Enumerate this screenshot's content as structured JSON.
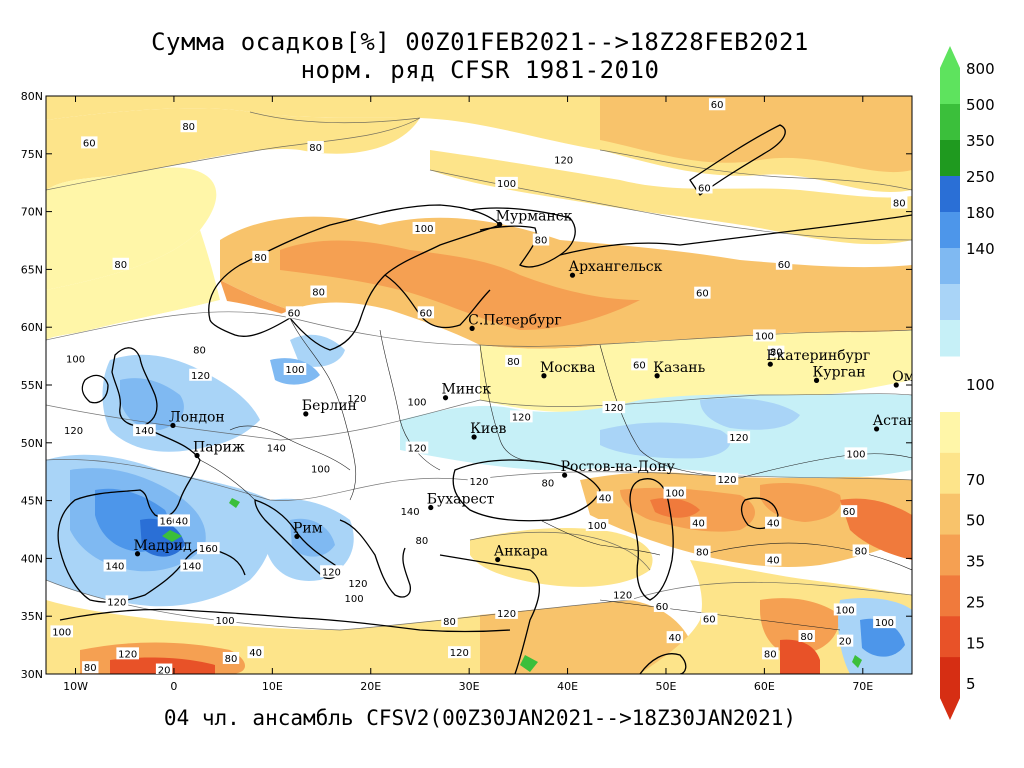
{
  "title": {
    "line1": "Сумма осадков[%] 00Z01FEB2021-->18Z28FEB2021",
    "line2": "норм. ряд CFSR 1981-2010"
  },
  "footer": "04 чл. ансамбль CFSV2(00Z30JAN2021-->18Z30JAN2021)",
  "lat_labels": [
    "80N",
    "75N",
    "70N",
    "65N",
    "60N",
    "55N",
    "50N",
    "45N",
    "40N",
    "35N",
    "30N"
  ],
  "lon_labels": [
    "10W",
    "0",
    "10E",
    "20E",
    "30E",
    "40E",
    "50E",
    "60E",
    "70E"
  ],
  "cities": [
    {
      "name": "Мурманск",
      "lon": 33.1,
      "lat": 68.9
    },
    {
      "name": "Архангельск",
      "lon": 40.5,
      "lat": 64.5
    },
    {
      "name": "С.Петербург",
      "lon": 30.3,
      "lat": 59.9
    },
    {
      "name": "Москва",
      "lon": 37.6,
      "lat": 55.8
    },
    {
      "name": "Казань",
      "lon": 49.1,
      "lat": 55.8
    },
    {
      "name": "Екатеринбург",
      "lon": 60.6,
      "lat": 56.8
    },
    {
      "name": "Курган",
      "lon": 65.3,
      "lat": 55.4
    },
    {
      "name": "Омск",
      "lon": 73.4,
      "lat": 55.0
    },
    {
      "name": "Астана",
      "lon": 71.4,
      "lat": 51.2
    },
    {
      "name": "Минск",
      "lon": 27.6,
      "lat": 53.9
    },
    {
      "name": "Берлин",
      "lon": 13.4,
      "lat": 52.5
    },
    {
      "name": "Лондон",
      "lon": -0.1,
      "lat": 51.5
    },
    {
      "name": "Париж",
      "lon": 2.35,
      "lat": 48.9
    },
    {
      "name": "Киев",
      "lon": 30.5,
      "lat": 50.5
    },
    {
      "name": "Ростов-на-Дону",
      "lon": 39.7,
      "lat": 47.2
    },
    {
      "name": "Бухарест",
      "lon": 26.1,
      "lat": 44.4
    },
    {
      "name": "Рим",
      "lon": 12.5,
      "lat": 41.9
    },
    {
      "name": "Мадрид",
      "lon": -3.7,
      "lat": 40.4
    },
    {
      "name": "Анкара",
      "lon": 32.9,
      "lat": 39.9
    }
  ],
  "legend": {
    "upper": [
      {
        "label": "800",
        "color": "#5ee35e"
      },
      {
        "label": "500",
        "color": "#3bbf3b"
      },
      {
        "label": "350",
        "color": "#1f9a1f"
      },
      {
        "label": "250",
        "color": "#2a6fd6"
      },
      {
        "label": "180",
        "color": "#4d96ea"
      },
      {
        "label": "140",
        "color": "#7fb9f2"
      },
      {
        "label": "",
        "color": "#a9d4f7"
      },
      {
        "label": "",
        "color": "#c6f0f7"
      }
    ],
    "mid_label": "100",
    "lower": [
      {
        "label": "",
        "color": "#fff6a8"
      },
      {
        "label": "70",
        "color": "#fde48a"
      },
      {
        "label": "50",
        "color": "#f8c36b"
      },
      {
        "label": "35",
        "color": "#f5a052"
      },
      {
        "label": "25",
        "color": "#f07a3c"
      },
      {
        "label": "15",
        "color": "#e85228"
      },
      {
        "label": "5",
        "color": "#d62e13"
      }
    ]
  },
  "contour_labels": [
    {
      "t": "80",
      "lon": 1.5,
      "lat": 77.3
    },
    {
      "t": "60",
      "lon": 55.2,
      "lat": 79.2
    },
    {
      "t": "60",
      "lon": -8.6,
      "lat": 75.9
    },
    {
      "t": "80",
      "lon": 14.4,
      "lat": 75.5
    },
    {
      "t": "120",
      "lon": 39.6,
      "lat": 74.4
    },
    {
      "t": "100",
      "lon": 33.8,
      "lat": 72.4
    },
    {
      "t": "60",
      "lon": 53.9,
      "lat": 72.0
    },
    {
      "t": "80",
      "lon": 73.7,
      "lat": 70.7
    },
    {
      "t": "80",
      "lon": 37.3,
      "lat": 67.5
    },
    {
      "t": "80",
      "lon": -5.4,
      "lat": 65.4
    },
    {
      "t": "80",
      "lon": 8.8,
      "lat": 66.0
    },
    {
      "t": "100",
      "lon": 25.4,
      "lat": 68.5
    },
    {
      "t": "60",
      "lon": 62.0,
      "lat": 65.4
    },
    {
      "t": "60",
      "lon": 53.7,
      "lat": 62.9
    },
    {
      "t": "80",
      "lon": 14.7,
      "lat": 63.0
    },
    {
      "t": "60",
      "lon": 12.2,
      "lat": 61.2
    },
    {
      "t": "60",
      "lon": 25.6,
      "lat": 61.2
    },
    {
      "t": "100",
      "lon": 60.0,
      "lat": 59.2
    },
    {
      "t": "80",
      "lon": 61.2,
      "lat": 57.8
    },
    {
      "t": "100",
      "lon": -10.0,
      "lat": 57.2
    },
    {
      "t": "80",
      "lon": 2.6,
      "lat": 58.0
    },
    {
      "t": "120",
      "lon": 2.7,
      "lat": 55.8
    },
    {
      "t": "100",
      "lon": 12.3,
      "lat": 56.3
    },
    {
      "t": "80",
      "lon": 34.5,
      "lat": 57.0
    },
    {
      "t": "60",
      "lon": 47.3,
      "lat": 56.7
    },
    {
      "t": "120",
      "lon": 18.6,
      "lat": 53.8
    },
    {
      "t": "100",
      "lon": 24.7,
      "lat": 53.5
    },
    {
      "t": "120",
      "lon": 35.3,
      "lat": 52.2
    },
    {
      "t": "120",
      "lon": 44.7,
      "lat": 53.0
    },
    {
      "t": "120",
      "lon": -10.2,
      "lat": 51.0
    },
    {
      "t": "140",
      "lon": -3.0,
      "lat": 51.0
    },
    {
      "t": "140",
      "lon": 10.4,
      "lat": 49.5
    },
    {
      "t": "120",
      "lon": 24.7,
      "lat": 49.5
    },
    {
      "t": "120",
      "lon": 57.4,
      "lat": 50.4
    },
    {
      "t": "100",
      "lon": 69.3,
      "lat": 49.0
    },
    {
      "t": "100",
      "lon": 14.9,
      "lat": 47.7
    },
    {
      "t": "120",
      "lon": 31.0,
      "lat": 46.6
    },
    {
      "t": "80",
      "lon": 38.0,
      "lat": 46.5
    },
    {
      "t": "40",
      "lon": 43.8,
      "lat": 45.2
    },
    {
      "t": "120",
      "lon": 56.2,
      "lat": 46.8
    },
    {
      "t": "100",
      "lon": 50.9,
      "lat": 45.6
    },
    {
      "t": "40",
      "lon": 53.3,
      "lat": 43.0
    },
    {
      "t": "40",
      "lon": 60.9,
      "lat": 43.0
    },
    {
      "t": "60",
      "lon": 68.6,
      "lat": 44.0
    },
    {
      "t": "160",
      "lon": -0.5,
      "lat": 43.2
    },
    {
      "t": "40",
      "lon": 0.8,
      "lat": 43.2
    },
    {
      "t": "140",
      "lon": 24.0,
      "lat": 44.0
    },
    {
      "t": "100",
      "lon": 43.0,
      "lat": 42.8
    },
    {
      "t": "80",
      "lon": 25.2,
      "lat": 41.5
    },
    {
      "t": "160",
      "lon": 3.5,
      "lat": 40.8
    },
    {
      "t": "140",
      "lon": -6.0,
      "lat": 39.3
    },
    {
      "t": "140",
      "lon": 1.8,
      "lat": 39.3
    },
    {
      "t": "120",
      "lon": 16.0,
      "lat": 38.8
    },
    {
      "t": "120",
      "lon": 18.7,
      "lat": 37.8
    },
    {
      "t": "80",
      "lon": 53.7,
      "lat": 40.5
    },
    {
      "t": "40",
      "lon": 60.9,
      "lat": 39.8
    },
    {
      "t": "80",
      "lon": 69.8,
      "lat": 40.6
    },
    {
      "t": "120",
      "lon": -5.8,
      "lat": 36.2
    },
    {
      "t": "100",
      "lon": 5.2,
      "lat": 34.6
    },
    {
      "t": "100",
      "lon": 18.3,
      "lat": 36.5
    },
    {
      "t": "80",
      "lon": 28.0,
      "lat": 34.5
    },
    {
      "t": "120",
      "lon": 33.8,
      "lat": 35.2
    },
    {
      "t": "120",
      "lon": 45.6,
      "lat": 36.8
    },
    {
      "t": "60",
      "lon": 49.6,
      "lat": 35.8
    },
    {
      "t": "60",
      "lon": 54.4,
      "lat": 34.7
    },
    {
      "t": "100",
      "lon": 68.2,
      "lat": 35.5
    },
    {
      "t": "100",
      "lon": 72.2,
      "lat": 34.4
    },
    {
      "t": "80",
      "lon": 64.3,
      "lat": 33.2
    },
    {
      "t": "20",
      "lon": 68.2,
      "lat": 32.8
    },
    {
      "t": "120",
      "lon": -4.7,
      "lat": 31.7
    },
    {
      "t": "80",
      "lon": 5.8,
      "lat": 31.3
    },
    {
      "t": "40",
      "lon": 8.3,
      "lat": 31.8
    },
    {
      "t": "20",
      "lon": -1.0,
      "lat": 30.3
    },
    {
      "t": "80",
      "lon": -8.5,
      "lat": 30.5
    },
    {
      "t": "120",
      "lon": 29.0,
      "lat": 31.8
    },
    {
      "t": "40",
      "lon": 50.9,
      "lat": 33.1
    },
    {
      "t": "80",
      "lon": 60.6,
      "lat": 31.7
    },
    {
      "t": "100",
      "lon": -11.4,
      "lat": 33.6
    }
  ]
}
